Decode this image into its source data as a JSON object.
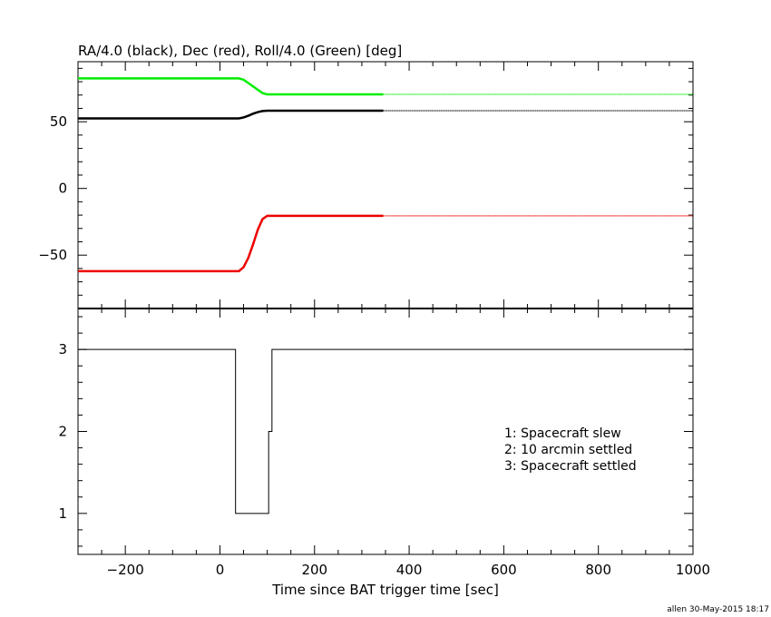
{
  "chart_data": [
    {
      "type": "line",
      "title": "RA/4.0 (black), Dec (red), Roll/4.0 (Green) [deg]",
      "xlim": [
        -300,
        1000
      ],
      "ylim": [
        -90,
        95
      ],
      "y_ticks": [
        50,
        0,
        -50
      ],
      "x_ticks": [
        -200,
        0,
        200,
        400,
        600,
        800,
        1000
      ],
      "grid": false,
      "series": [
        {
          "color": "#00ee00",
          "solid": {
            "x": [
              -300,
              40,
              50,
              60,
              70,
              80,
              90,
              100,
              345
            ],
            "y": [
              82.5,
              82.5,
              81.5,
              79,
              76.5,
              74,
              71.5,
              70.5,
              70.5
            ]
          },
          "dotted": {
            "x": [
              345,
              1000
            ],
            "y": [
              70.5,
              70.5
            ]
          }
        },
        {
          "color": "#000000",
          "solid": {
            "x": [
              -300,
              40,
              50,
              60,
              70,
              80,
              90,
              100,
              345
            ],
            "y": [
              52.5,
              52.5,
              53.2,
              54.5,
              56,
              57.2,
              58,
              58.3,
              58.3
            ]
          },
          "dotted": {
            "x": [
              345,
              1000
            ],
            "y": [
              58.3,
              58.3
            ]
          }
        },
        {
          "color": "#ee0000",
          "solid": {
            "x": [
              -300,
              40,
              50,
              60,
              70,
              80,
              90,
              100,
              345
            ],
            "y": [
              -62,
              -62,
              -59,
              -52,
              -42,
              -31,
              -23,
              -20.5,
              -20.5
            ]
          },
          "dotted": {
            "x": [
              345,
              1000
            ],
            "y": [
              -20.5,
              -20.5
            ]
          }
        }
      ]
    },
    {
      "type": "line",
      "xlabel": "Time since BAT trigger time [sec]",
      "xlim": [
        -300,
        1000
      ],
      "ylim": [
        0.5,
        3.5
      ],
      "y_ticks": [
        3,
        2,
        1
      ],
      "x_ticks": [
        -200,
        0,
        200,
        400,
        600,
        800,
        1000
      ],
      "step": {
        "x": [
          -300,
          33,
          33,
          103,
          103,
          110,
          110,
          1000
        ],
        "y": [
          3,
          3,
          1,
          1,
          2,
          2,
          3,
          3
        ]
      },
      "annotations": [
        "1: Spacecraft slew",
        "2: 10 arcmin settled",
        "3: Spacecraft settled"
      ]
    }
  ],
  "footer": "allen 30-May-2015 18:17"
}
